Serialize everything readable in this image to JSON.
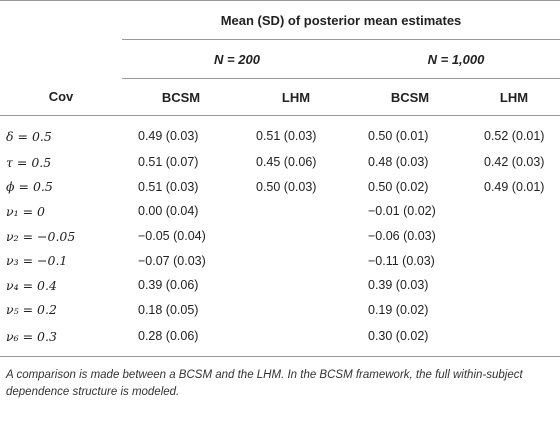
{
  "table": {
    "group_header": "Mean (SD) of posterior mean estimates",
    "n_headers": [
      "N = 200",
      "N = 1,000"
    ],
    "cov_label": "Cov",
    "method_headers": [
      "BCSM",
      "LHM",
      "BCSM",
      "LHM"
    ],
    "rows": [
      {
        "cov": "δ = 0.5",
        "cells": [
          "0.49 (0.03)",
          "0.51 (0.03)",
          "0.50 (0.01)",
          "0.52 (0.01)"
        ]
      },
      {
        "cov": "τ = 0.5",
        "cells": [
          "0.51 (0.07)",
          "0.45 (0.06)",
          "0.48 (0.03)",
          "0.42 (0.03)"
        ]
      },
      {
        "cov": "ϕ = 0.5",
        "cells": [
          "0.51 (0.03)",
          "0.50 (0.03)",
          "0.50 (0.02)",
          "0.49 (0.01)"
        ]
      },
      {
        "cov": "ν₁ = 0",
        "cells": [
          "0.00 (0.04)",
          "",
          "−0.01 (0.02)",
          ""
        ]
      },
      {
        "cov": "ν₂ = −0.05",
        "cells": [
          "−0.05 (0.04)",
          "",
          "−0.06 (0.03)",
          ""
        ]
      },
      {
        "cov": "ν₃ = −0.1",
        "cells": [
          "−0.07 (0.03)",
          "",
          "−0.11 (0.03)",
          ""
        ]
      },
      {
        "cov": "ν₄ = 0.4",
        "cells": [
          "0.39 (0.06)",
          "",
          "0.39 (0.03)",
          ""
        ]
      },
      {
        "cov": "ν₅ = 0.2",
        "cells": [
          "0.18 (0.05)",
          "",
          "0.19 (0.02)",
          ""
        ]
      },
      {
        "cov": "ν₆ = 0.3",
        "cells": [
          "0.28 (0.06)",
          "",
          "0.30 (0.02)",
          ""
        ]
      }
    ]
  },
  "footnote": "A comparison is made between a BCSM and the LHM. In the BCSM framework, the full within-subject dependence structure is modeled."
}
